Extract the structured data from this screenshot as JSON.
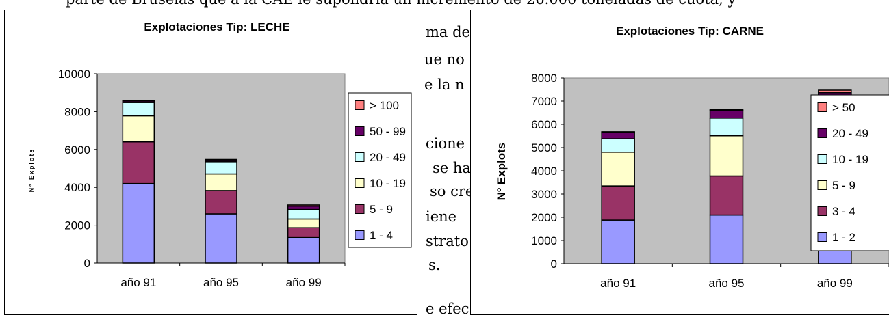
{
  "document": {
    "lines": [
      "parte de Bruselas que a la CAE le supondría un incremento de 26.000 toneladas de cuota, y",
      "ma de",
      "ue no",
      "e la n",
      "cione",
      "se ha",
      "so cre",
      "iene",
      "strato",
      "s.",
      "e efec"
    ]
  },
  "chart_data": [
    {
      "type": "bar",
      "stacked": true,
      "title": "Explotaciones Tip: LECHE",
      "xlabel": "",
      "ylabel": "Nº Explots",
      "categories": [
        "año 91",
        "año 95",
        "año 99"
      ],
      "ylim": [
        0,
        10000
      ],
      "yticks": [
        0,
        2000,
        4000,
        6000,
        8000,
        10000
      ],
      "ytick_labels": [
        "0",
        "2000",
        "4000",
        "6000",
        "8000",
        "10000"
      ],
      "plot_background": "#c0c0c0",
      "legend_position": "right",
      "series": [
        {
          "name": "1 - 4",
          "color": "#9999ff",
          "values": [
            4200,
            2600,
            1350
          ]
        },
        {
          "name": "5 - 9",
          "color": "#993366",
          "values": [
            2200,
            1230,
            520
          ]
        },
        {
          "name": "10 - 19",
          "color": "#ffffcc",
          "values": [
            1380,
            880,
            460
          ]
        },
        {
          "name": "20 - 49",
          "color": "#ccffff",
          "values": [
            700,
            640,
            500
          ]
        },
        {
          "name": "50 - 99",
          "color": "#660066",
          "values": [
            80,
            100,
            180
          ]
        },
        {
          "name": "> 100",
          "color": "#ff8080",
          "values": [
            10,
            20,
            60
          ]
        }
      ]
    },
    {
      "type": "bar",
      "stacked": true,
      "title": "Explotaciones Tip: CARNE",
      "xlabel": "",
      "ylabel": "Nº Explots",
      "categories": [
        "año 91",
        "año 95",
        "año 99"
      ],
      "ylim": [
        0,
        8000
      ],
      "yticks": [
        0,
        1000,
        2000,
        3000,
        4000,
        5000,
        6000,
        7000,
        8000
      ],
      "ytick_labels": [
        "0",
        "1000",
        "2000",
        "3000",
        "4000",
        "5000",
        "6000",
        "7000",
        "8000"
      ],
      "plot_background": "#c0c0c0",
      "legend_position": "right",
      "series": [
        {
          "name": "1 - 2",
          "color": "#9999ff",
          "values": [
            1880,
            2100,
            2450
          ]
        },
        {
          "name": "3 - 4",
          "color": "#993366",
          "values": [
            1470,
            1680,
            1750
          ]
        },
        {
          "name": "5 - 9",
          "color": "#ffffcc",
          "values": [
            1450,
            1730,
            1830
          ]
        },
        {
          "name": "10 - 19",
          "color": "#ccffff",
          "values": [
            580,
            760,
            850
          ]
        },
        {
          "name": "20 - 49",
          "color": "#660066",
          "values": [
            270,
            340,
            480
          ]
        },
        {
          "name": "> 50",
          "color": "#ff8080",
          "values": [
            30,
            40,
            110
          ]
        }
      ]
    }
  ]
}
